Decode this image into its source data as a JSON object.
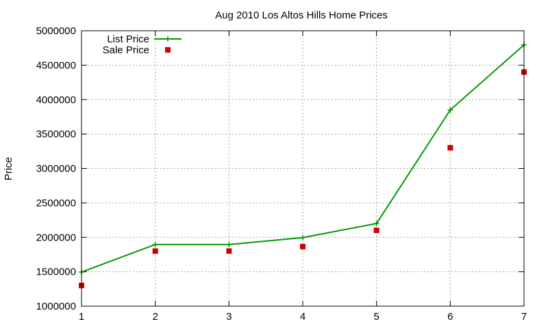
{
  "chart_data": {
    "type": "line",
    "title": "Aug 2010 Los Altos Hills Home Prices",
    "xlabel": "",
    "ylabel": "Price",
    "x": [
      1,
      2,
      3,
      4,
      5,
      6,
      7
    ],
    "xlim": [
      1,
      7
    ],
    "ylim": [
      1000000,
      5000000
    ],
    "x_ticks": [
      "1",
      "2",
      "3",
      "4",
      "5",
      "6",
      "7"
    ],
    "y_ticks": [
      "1000000",
      "1500000",
      "2000000",
      "2500000",
      "3000000",
      "3500000",
      "4000000",
      "4500000",
      "5000000"
    ],
    "grid": true,
    "legend_position": "top-left",
    "series": [
      {
        "name": "List Price",
        "style": "line-with-plus-markers",
        "color": "#009900",
        "values": [
          1495000,
          1895000,
          1895000,
          1995000,
          2200000,
          3850000,
          4795000
        ]
      },
      {
        "name": "Sale Price",
        "style": "square-markers",
        "color": "#cc0000",
        "values": [
          1300000,
          1800000,
          1800000,
          1865000,
          2100000,
          3300000,
          4400000
        ]
      }
    ]
  }
}
